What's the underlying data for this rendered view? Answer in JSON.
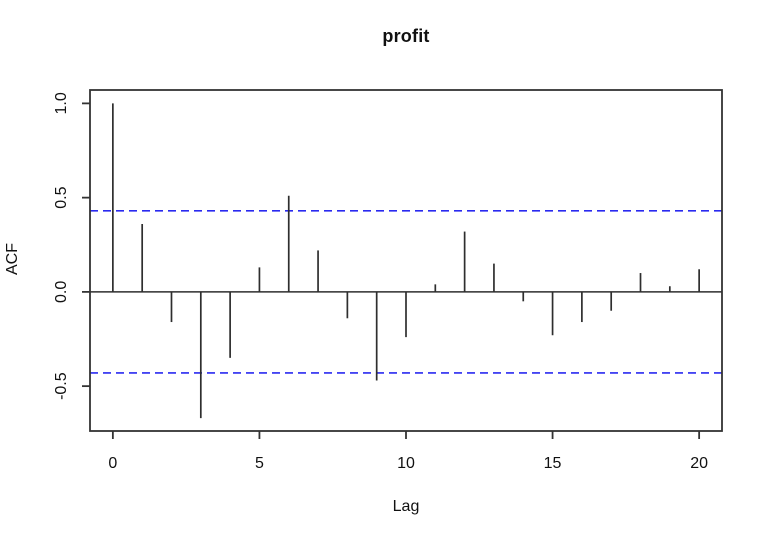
{
  "title": "profit",
  "colors": {
    "background": "#ffffff",
    "bar": "#2e2e2e",
    "axis": "#333333",
    "zero_line": "#2e2e2e",
    "ci_line": "#2a2af0",
    "text": "#111111"
  },
  "chart_data": {
    "type": "bar",
    "subtype": "acf-stem-plot",
    "title": "profit",
    "xlabel": "Lag",
    "ylabel": "ACF",
    "x": [
      0,
      1,
      2,
      3,
      4,
      5,
      6,
      7,
      8,
      9,
      10,
      11,
      12,
      13,
      14,
      15,
      16,
      17,
      18,
      19,
      20
    ],
    "values": [
      1.0,
      0.36,
      -0.16,
      -0.67,
      -0.35,
      0.13,
      0.51,
      0.22,
      -0.14,
      -0.47,
      -0.24,
      0.04,
      0.32,
      0.15,
      -0.05,
      -0.23,
      -0.16,
      -0.1,
      0.1,
      0.03,
      0.12
    ],
    "confidence_interval": 0.43,
    "ci_style": "dashed",
    "x_ticks": [
      0,
      5,
      10,
      15,
      20
    ],
    "x_tick_labels": [
      "0",
      "5",
      "10",
      "15",
      "20"
    ],
    "y_ticks": [
      -0.5,
      0.0,
      0.5,
      1.0
    ],
    "y_tick_labels": [
      "-0.5",
      "0.0",
      "0.5",
      "1.0"
    ],
    "xlim": [
      -0.78,
      20.78
    ],
    "ylim": [
      -0.738,
      1.071
    ],
    "grid": false,
    "legend": null
  }
}
